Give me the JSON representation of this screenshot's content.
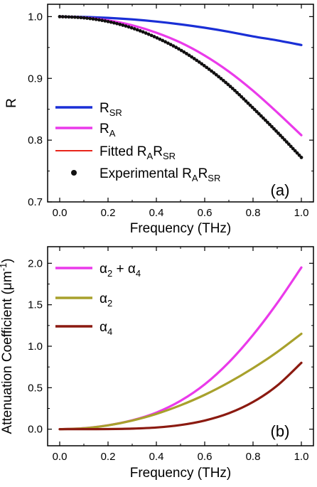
{
  "chart_data": [
    {
      "type": "line",
      "panel_label": "(a)",
      "xlabel": "Frequency (THz)",
      "ylabel": "R",
      "xlim": [
        -0.05,
        1.05
      ],
      "ylim": [
        0.7,
        1.02
      ],
      "xticks": [
        "0.0",
        "0.2",
        "0.4",
        "0.6",
        "0.8",
        "1.0"
      ],
      "yticks": [
        "0.7",
        "0.8",
        "0.9",
        "1.0"
      ],
      "grid": false,
      "legend_position": "lower-left",
      "series": [
        {
          "name": "R_SR",
          "legend_main": "R",
          "legend_sub": "SR",
          "color": "#1a2fd6",
          "style": "line",
          "x": [
            0.0,
            0.1,
            0.2,
            0.3,
            0.4,
            0.5,
            0.6,
            0.7,
            0.8,
            0.9,
            1.0
          ],
          "y": [
            1.0,
            0.9995,
            0.998,
            0.9955,
            0.992,
            0.9875,
            0.982,
            0.9755,
            0.968,
            0.9615,
            0.954
          ]
        },
        {
          "name": "R_A",
          "legend_main": "R",
          "legend_sub": "A",
          "color": "#ea3aea",
          "style": "line",
          "x": [
            0.0,
            0.1,
            0.2,
            0.3,
            0.4,
            0.5,
            0.6,
            0.7,
            0.8,
            0.9,
            1.0
          ],
          "y": [
            1.0,
            0.9985,
            0.994,
            0.986,
            0.974,
            0.958,
            0.937,
            0.911,
            0.88,
            0.845,
            0.808
          ]
        },
        {
          "name": "Fitted R_A R_SR",
          "legend_main": "Fitted R",
          "legend_parts": [
            "Fitted R",
            "A",
            "R",
            "SR"
          ],
          "color": "#e8241a",
          "style": "line",
          "x": [
            0.0,
            0.1,
            0.2,
            0.3,
            0.4,
            0.5,
            0.6,
            0.7,
            0.8,
            0.9,
            1.0
          ],
          "y": [
            1.0,
            0.998,
            0.992,
            0.9815,
            0.966,
            0.946,
            0.92,
            0.889,
            0.852,
            0.813,
            0.772
          ]
        },
        {
          "name": "Experimental R_A R_SR",
          "legend_parts": [
            "Experimental R",
            "A",
            "R",
            "SR"
          ],
          "color": "#111111",
          "style": "dots",
          "x": [
            0.0,
            0.1,
            0.2,
            0.3,
            0.4,
            0.5,
            0.6,
            0.7,
            0.8,
            0.9,
            1.0
          ],
          "y": [
            1.0,
            0.998,
            0.992,
            0.9815,
            0.966,
            0.946,
            0.92,
            0.889,
            0.852,
            0.813,
            0.772
          ]
        }
      ]
    },
    {
      "type": "line",
      "panel_label": "(b)",
      "xlabel": "Frequency (THz)",
      "ylabel": "Attenuation Coefficient (μm",
      "ylabel_sup": "-1",
      "ylabel_end": ")",
      "xlim": [
        -0.05,
        1.05
      ],
      "ylim": [
        -0.2,
        2.2
      ],
      "xticks": [
        "0.0",
        "0.2",
        "0.4",
        "0.6",
        "0.8",
        "1.0"
      ],
      "yticks": [
        "0.0",
        "0.5",
        "1.0",
        "1.5",
        "2.0"
      ],
      "grid": false,
      "legend_position": "upper-left",
      "series": [
        {
          "name": "α2 + α4",
          "legend_parts": [
            "α",
            "2",
            " + α",
            "4"
          ],
          "color": "#ea3aea",
          "style": "line",
          "x": [
            0.0,
            0.1,
            0.2,
            0.3,
            0.4,
            0.5,
            0.6,
            0.7,
            0.8,
            0.9,
            1.0
          ],
          "y": [
            0.0,
            0.012,
            0.047,
            0.107,
            0.2,
            0.342,
            0.54,
            0.806,
            1.136,
            1.52,
            1.95
          ]
        },
        {
          "name": "α2",
          "legend_parts": [
            "α",
            "2"
          ],
          "color": "#a8a12c",
          "style": "line",
          "x": [
            0.0,
            0.1,
            0.2,
            0.3,
            0.4,
            0.5,
            0.6,
            0.7,
            0.8,
            0.9,
            1.0
          ],
          "y": [
            0.0,
            0.011,
            0.046,
            0.104,
            0.184,
            0.288,
            0.414,
            0.564,
            0.736,
            0.93,
            1.15
          ]
        },
        {
          "name": "α4",
          "legend_parts": [
            "α",
            "4"
          ],
          "color": "#8b1a10",
          "style": "line",
          "x": [
            0.0,
            0.1,
            0.2,
            0.3,
            0.4,
            0.5,
            0.6,
            0.7,
            0.8,
            0.9,
            1.0
          ],
          "y": [
            0.0,
            0.0001,
            0.0013,
            0.0065,
            0.02,
            0.05,
            0.104,
            0.192,
            0.328,
            0.525,
            0.8
          ]
        }
      ]
    }
  ]
}
